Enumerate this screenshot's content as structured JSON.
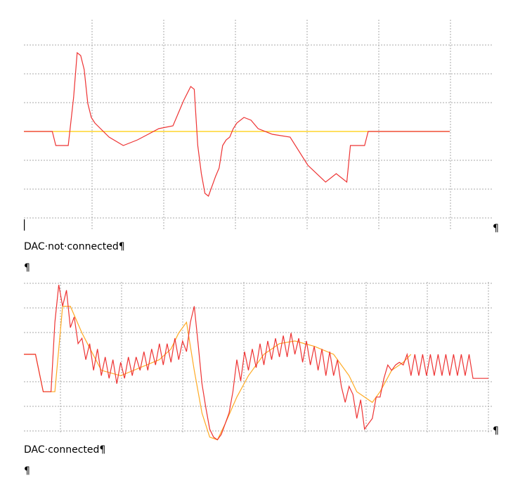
{
  "document": {
    "caption_1": "DAC·not·connected¶",
    "empty_paragraph_1": "¶",
    "caption_2": "DAC·connected¶",
    "empty_paragraph_2": "¶",
    "end_mark_1": "¶",
    "end_mark_2": "¶"
  },
  "colors": {
    "measured": "#ee3333",
    "reference": "#ffcc00",
    "reference_connected": "#ffaa22",
    "grid": "#aaaaaa"
  },
  "chart_data": [
    {
      "type": "line",
      "grid": true,
      "series": [
        {
          "x": [
            0,
            5,
            8,
            9,
            12,
            12.5,
            14,
            15,
            16,
            17,
            18,
            19,
            20,
            24,
            28,
            32,
            35,
            38,
            42,
            45,
            47,
            48,
            49,
            50,
            51,
            52,
            54,
            55,
            56,
            57,
            58,
            59,
            60,
            62,
            64,
            66,
            70,
            75,
            80,
            85,
            88,
            91,
            92,
            93,
            95,
            96,
            97,
            98,
            99,
            100,
            101,
            103,
            106,
            110,
            115,
            120
          ],
          "y": [
            0,
            0,
            0,
            -0.5,
            -0.5,
            -0.5,
            1.2,
            2.8,
            2.7,
            2.2,
            1,
            0.5,
            0.3,
            -0.2,
            -0.5,
            -0.3,
            -0.1,
            0.1,
            0.2,
            1.1,
            1.6,
            1.5,
            -0.5,
            -1.5,
            -2.2,
            -2.3,
            -1.6,
            -1.3,
            -0.5,
            -0.3,
            -0.2,
            0.1,
            0.3,
            0.5,
            0.4,
            0.1,
            -0.1,
            -0.2,
            -1.2,
            -1.8,
            -1.5,
            -1.8,
            -0.5,
            -0.5,
            -0.5,
            -0.5,
            0,
            0,
            0,
            0,
            0,
            0,
            0,
            0,
            0,
            0
          ]
        },
        {
          "x": [
            0,
            120
          ],
          "y": [
            0,
            0
          ]
        }
      ]
    },
    {
      "type": "line",
      "grid": true,
      "series": [
        {
          "x": [
            0,
            3,
            5,
            6,
            7,
            8,
            9,
            10,
            11,
            12,
            13,
            14,
            15,
            16,
            17,
            18,
            19,
            20,
            21,
            22,
            23,
            24,
            25,
            26,
            27,
            28,
            29,
            30,
            31,
            32,
            33,
            34,
            35,
            36,
            37,
            38,
            39,
            40,
            41,
            42,
            43,
            44,
            45,
            46,
            47,
            48,
            49,
            50,
            51,
            52,
            53,
            54,
            55,
            56,
            57,
            58,
            59,
            60,
            61,
            62,
            63,
            64,
            65,
            66,
            67,
            68,
            69,
            70,
            71,
            72,
            73,
            74,
            75,
            76,
            77,
            78,
            79,
            80,
            81,
            82,
            83,
            84,
            85,
            86,
            87,
            88,
            89,
            90,
            91,
            92,
            93,
            94,
            95,
            96,
            97,
            98,
            99,
            100,
            101,
            102,
            103,
            104,
            105,
            106,
            107,
            108,
            109,
            110,
            111,
            112,
            113,
            114,
            115,
            116,
            117,
            118,
            119,
            120
          ],
          "y": [
            0,
            0,
            -1.4,
            -1.4,
            -1.4,
            1.2,
            2.6,
            1.8,
            2.4,
            1,
            1.4,
            0.4,
            0.6,
            -0.2,
            0.4,
            -0.6,
            0.2,
            -0.8,
            -0.1,
            -0.9,
            -0.2,
            -1.1,
            -0.3,
            -0.9,
            -0.1,
            -0.8,
            -0.1,
            -0.6,
            0.1,
            -0.6,
            0.2,
            -0.4,
            0.4,
            -0.4,
            0.4,
            -0.3,
            0.6,
            -0.2,
            0.5,
            0.1,
            1.2,
            1.8,
            0.4,
            -1.1,
            -2,
            -2.8,
            -3.1,
            -3.2,
            -3,
            -2.6,
            -2.2,
            -1.4,
            -0.2,
            -1,
            0.1,
            -0.6,
            0.2,
            -0.5,
            0.4,
            -0.4,
            0.5,
            -0.2,
            0.6,
            -0.1,
            0.7,
            -0.1,
            0.8,
            0,
            0.6,
            -0.3,
            0.5,
            -0.4,
            0.3,
            -0.6,
            0.2,
            -0.8,
            0.1,
            -0.8,
            -0.2,
            -1.2,
            -1.8,
            -1.2,
            -1.5,
            -2.4,
            -1.7,
            -2.8,
            -2.6,
            -2.4,
            -1.6,
            -1.6,
            -0.9,
            -0.4,
            -0.6,
            -0.4,
            -0.3,
            -0.4,
            0,
            -0.8,
            0,
            -0.8,
            0,
            -0.8,
            0,
            -0.8,
            0,
            -0.8,
            0,
            -0.8,
            0,
            -0.8,
            0,
            -0.8,
            0,
            -0.9,
            -0.9,
            -0.9,
            -0.9,
            -0.9
          ]
        },
        {
          "x": [
            0,
            3,
            5,
            8,
            10,
            12,
            15,
            20,
            25,
            30,
            35,
            38,
            40,
            42,
            44,
            46,
            48,
            50,
            52,
            55,
            58,
            62,
            66,
            70,
            75,
            80,
            84,
            86,
            88,
            90,
            92,
            95,
            98,
            100
          ],
          "y": [
            0,
            0,
            -1.4,
            -1.4,
            1.8,
            1.8,
            0.8,
            -0.6,
            -0.8,
            -0.5,
            -0.2,
            0.2,
            0.8,
            1.2,
            -0.6,
            -2.2,
            -3.1,
            -3.2,
            -2.6,
            -1.6,
            -0.8,
            0,
            0.4,
            0.5,
            0.3,
            0,
            -0.8,
            -1.4,
            -1.6,
            -1.8,
            -1.4,
            -0.6,
            -0.3,
            0
          ]
        }
      ]
    }
  ]
}
